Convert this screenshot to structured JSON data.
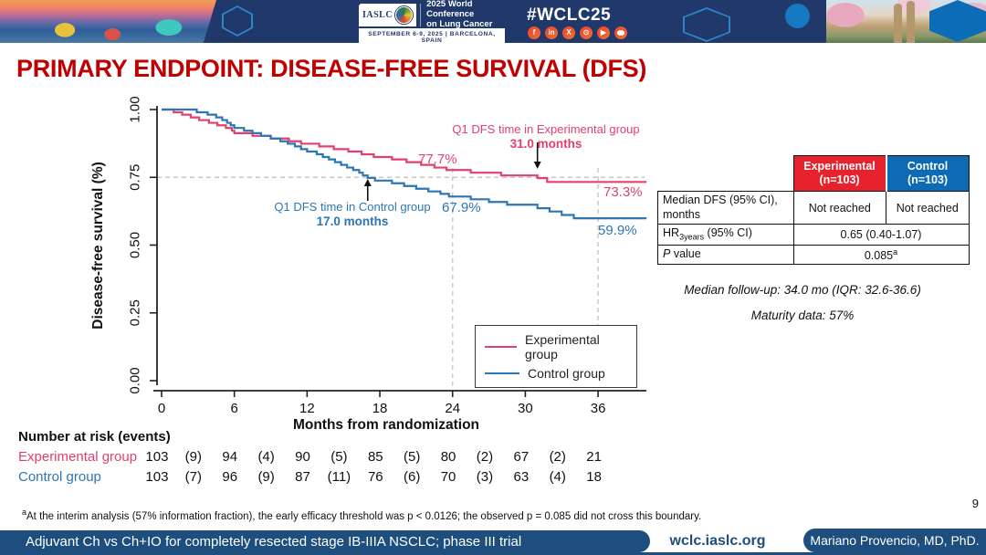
{
  "header": {
    "hashtag": "#WCLC25",
    "logo": {
      "iaslc": "IASLC",
      "conference_line1": "2025 World Conference",
      "conference_line2": "on Lung Cancer",
      "dates": "SEPTEMBER 6-9, 2025  |  BARCELONA, SPAIN"
    },
    "social_icons": [
      "facebook-icon",
      "linkedin-icon",
      "x-icon",
      "instagram-icon",
      "youtube-icon",
      "wechat-icon"
    ]
  },
  "title": "PRIMARY ENDPOINT: DISEASE-FREE SURVIVAL (DFS)",
  "chart_data": {
    "type": "line",
    "subtype": "kaplan-meier",
    "xlabel": "Months from randomization",
    "ylabel": "Disease-free survival (%)",
    "xlim": [
      0,
      40
    ],
    "ylim": [
      0,
      1
    ],
    "xticks": [
      0,
      6,
      12,
      18,
      24,
      30,
      36
    ],
    "ytick_labels": [
      "0.00",
      "0.25",
      "0.50",
      "0.75",
      "1.00"
    ],
    "reference_lines": {
      "horizontal_y": 0.75,
      "vertical_x": [
        24,
        36
      ],
      "style": "dashed-gray"
    },
    "legend_position": "lower-right-box",
    "series": [
      {
        "name": "Experimental group",
        "color": "#e2406d",
        "steps": [
          [
            0,
            1.0
          ],
          [
            1.0,
            0.99
          ],
          [
            1.7,
            0.981
          ],
          [
            2.4,
            0.971
          ],
          [
            3.1,
            0.961
          ],
          [
            3.9,
            0.951
          ],
          [
            4.6,
            0.942
          ],
          [
            5.3,
            0.932
          ],
          [
            5.8,
            0.922
          ],
          [
            6.0,
            0.913
          ],
          [
            7.5,
            0.903
          ],
          [
            9.0,
            0.893
          ],
          [
            10.5,
            0.883
          ],
          [
            11.5,
            0.874
          ],
          [
            13.0,
            0.864
          ],
          [
            14.2,
            0.854
          ],
          [
            15.4,
            0.845
          ],
          [
            16.5,
            0.835
          ],
          [
            17.5,
            0.825
          ],
          [
            19.0,
            0.816
          ],
          [
            20.2,
            0.806
          ],
          [
            21.4,
            0.796
          ],
          [
            22.5,
            0.786
          ],
          [
            23.5,
            0.777
          ],
          [
            25.5,
            0.767
          ],
          [
            28.0,
            0.757
          ],
          [
            31.0,
            0.747
          ],
          [
            31.8,
            0.733
          ],
          [
            40,
            0.733
          ]
        ]
      },
      {
        "name": "Control group",
        "color": "#2c76b3",
        "steps": [
          [
            0,
            1.0
          ],
          [
            2.9,
            0.99
          ],
          [
            3.8,
            0.981
          ],
          [
            4.5,
            0.971
          ],
          [
            5.0,
            0.961
          ],
          [
            5.4,
            0.951
          ],
          [
            5.7,
            0.942
          ],
          [
            6.0,
            0.932
          ],
          [
            6.8,
            0.922
          ],
          [
            7.5,
            0.913
          ],
          [
            8.2,
            0.903
          ],
          [
            9.0,
            0.893
          ],
          [
            9.8,
            0.883
          ],
          [
            10.4,
            0.874
          ],
          [
            11.0,
            0.864
          ],
          [
            11.5,
            0.854
          ],
          [
            12.0,
            0.845
          ],
          [
            12.8,
            0.835
          ],
          [
            13.3,
            0.825
          ],
          [
            13.8,
            0.816
          ],
          [
            14.3,
            0.806
          ],
          [
            14.8,
            0.796
          ],
          [
            15.3,
            0.786
          ],
          [
            15.8,
            0.777
          ],
          [
            16.3,
            0.767
          ],
          [
            16.6,
            0.757
          ],
          [
            17.0,
            0.748
          ],
          [
            17.6,
            0.738
          ],
          [
            19.0,
            0.728
          ],
          [
            20.0,
            0.718
          ],
          [
            21.0,
            0.708
          ],
          [
            22.0,
            0.698
          ],
          [
            23.0,
            0.689
          ],
          [
            23.7,
            0.679
          ],
          [
            25.5,
            0.669
          ],
          [
            27.0,
            0.659
          ],
          [
            28.5,
            0.649
          ],
          [
            31.0,
            0.636
          ],
          [
            32.0,
            0.624
          ],
          [
            33.0,
            0.611
          ],
          [
            34.0,
            0.599
          ],
          [
            40,
            0.599
          ]
        ]
      }
    ],
    "annotations": {
      "experimental_q1": {
        "label": "Q1 DFS time in Experimental group",
        "value": "31.0 months",
        "month": 31.0
      },
      "control_q1": {
        "label": "Q1 DFS time in Control group",
        "value": "17.0 months",
        "month": 17.0
      },
      "experimental_24mo": "77.7%",
      "experimental_36mo": "73.3%",
      "control_24mo": "67.9%",
      "control_36mo": "59.9%"
    }
  },
  "results_table": {
    "col_headers": {
      "experimental_line1": "Experimental",
      "experimental_line2": "(n=103)",
      "control_line1": "Control",
      "control_line2": "(n=103)"
    },
    "median_row": {
      "label": "Median DFS (95% CI), months",
      "experimental": "Not reached",
      "control": "Not reached"
    },
    "hr_row": {
      "label_main": "HR",
      "label_sub": "3years",
      "label_rest": " (95% CI)",
      "value": "0.65 (0.40-1.07)"
    },
    "p_row": {
      "label_italic": "P",
      "label_rest": " value",
      "value": "0.085",
      "value_sup": "a"
    }
  },
  "followup_note_1": "Median follow-up: 34.0 mo (IQR: 32.6-36.6)",
  "followup_note_2": "Maturity data: 57%",
  "number_at_risk": {
    "title": "Number at risk (events)",
    "rows": [
      {
        "label": "Experimental group",
        "values": [
          "103",
          "(9)",
          "94",
          "(4)",
          "90",
          "(5)",
          "85",
          "(5)",
          "80",
          "(2)",
          "67",
          "(2)",
          "21"
        ]
      },
      {
        "label": "Control group",
        "values": [
          "103",
          "(7)",
          "96",
          "(9)",
          "87",
          "(11)",
          "76",
          "(6)",
          "70",
          "(3)",
          "63",
          "(4)",
          "18"
        ]
      }
    ]
  },
  "footnote": {
    "sup": "a",
    "text": "At the interim analysis (57% information fraction), the early efficacy threshold was p < 0.0126; the observed p = 0.085 did not cross this boundary."
  },
  "page_number": "9",
  "footer": {
    "trial": "Adjuvant Ch vs Ch+IO for completely resected stage IB-IIIA NSCLC; phase III trial",
    "website": "wclc.iaslc.org",
    "presenter": "Mariano Provencio, MD, PhD."
  },
  "colors": {
    "experimental": "#e2406d",
    "control": "#2c76b3",
    "title_red": "#c00000",
    "footer_blue": "#1d4e7e",
    "header_navy": "#20386a",
    "table_red": "#e8222d",
    "table_blue": "#0d6ab5",
    "dashed_gray": "#c8c8c8"
  }
}
